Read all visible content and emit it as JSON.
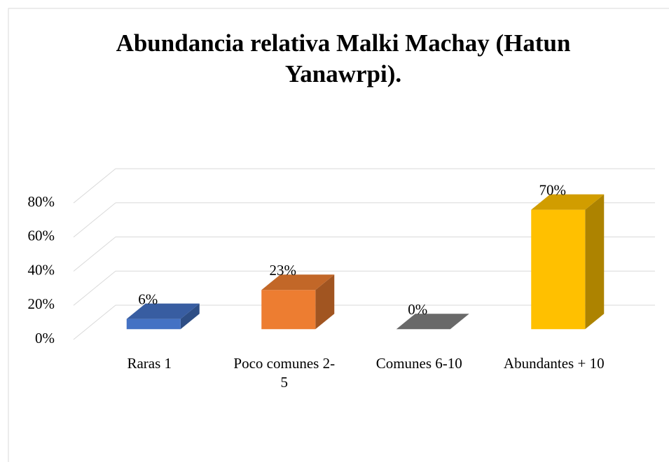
{
  "chart_data": {
    "type": "bar3d",
    "title": "Abundancia relativa Malki Machay (Hatun Yanawrpi).",
    "categories": [
      "Raras 1",
      "Poco comunes 2-5",
      "Comunes 6-10",
      "Abundantes  + 10"
    ],
    "values": [
      6,
      23,
      0,
      70
    ],
    "value_labels": [
      "6%",
      "23%",
      "0%",
      "70%"
    ],
    "colors": [
      "#4472c4",
      "#ed7d31",
      "#808080",
      "#ffc000"
    ],
    "ylim": [
      0,
      80
    ],
    "yticks": [
      {
        "value": 0,
        "label": "0%"
      },
      {
        "value": 20,
        "label": "20%"
      },
      {
        "value": 40,
        "label": "40%"
      },
      {
        "value": 60,
        "label": "60%"
      },
      {
        "value": 80,
        "label": "80%"
      }
    ],
    "grid": true
  }
}
